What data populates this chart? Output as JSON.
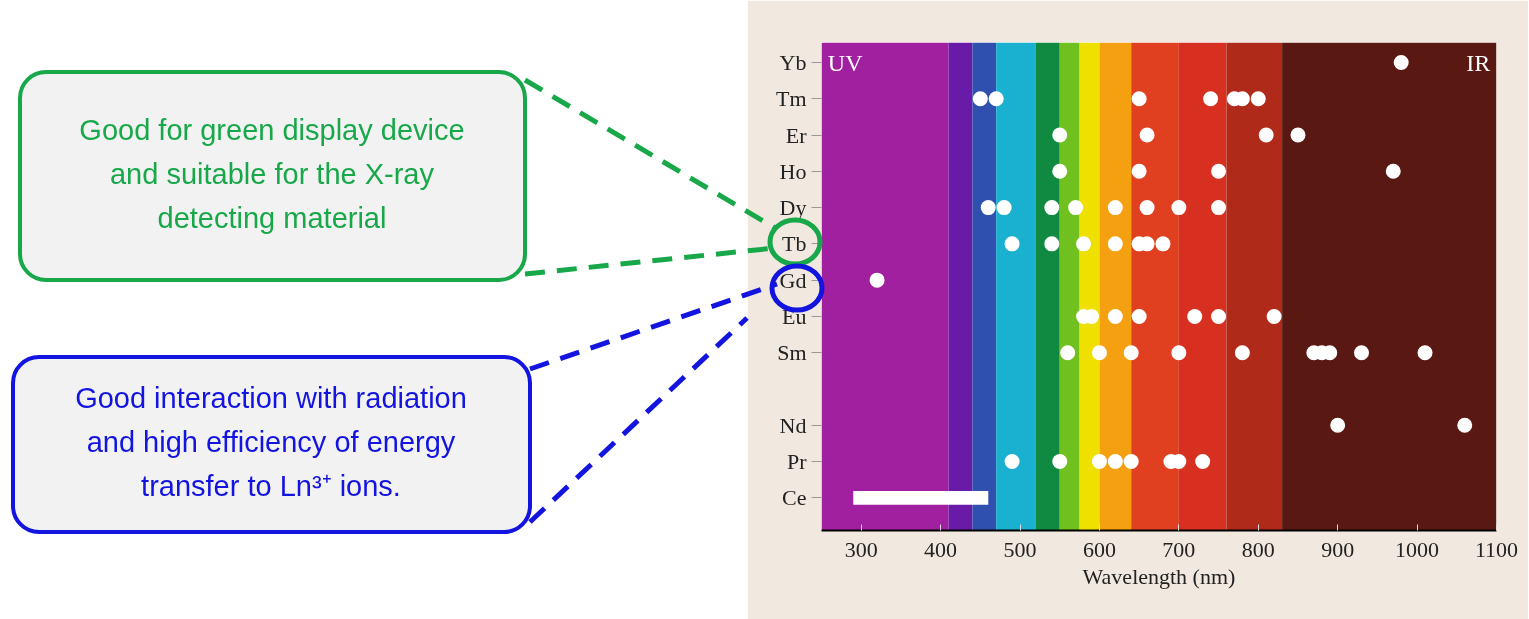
{
  "chart_data": {
    "type": "scatter",
    "orientation": "horizontal",
    "xlabel": "Wavelength (nm)",
    "categories": [
      "Yb",
      "Tm",
      "Er",
      "Ho",
      "Dy",
      "Tb",
      "Gd",
      "Eu",
      "Sm",
      null,
      "Nd",
      "Pr",
      "Ce"
    ],
    "xlim": [
      250,
      1100
    ],
    "xticks": [
      300,
      400,
      500,
      600,
      700,
      800,
      900,
      1000,
      1100
    ],
    "marker": "circle",
    "grid": false,
    "series": [
      {
        "color": "#ffffff",
        "values": [
          980,
          450,
          550,
          550,
          460,
          490,
          320,
          580,
          560,
          null,
          900,
          490,
          null
        ]
      },
      {
        "color": "#ffffff",
        "values": [
          null,
          470,
          660,
          650,
          480,
          540,
          null,
          590,
          600,
          null,
          1060,
          550,
          null
        ]
      },
      {
        "color": "#ffffff",
        "values": [
          null,
          650,
          810,
          750,
          540,
          580,
          null,
          620,
          640,
          null,
          null,
          600,
          null
        ]
      },
      {
        "color": "#ffffff",
        "values": [
          null,
          740,
          850,
          970,
          570,
          620,
          null,
          650,
          700,
          null,
          null,
          620,
          null
        ]
      },
      {
        "color": "#ffffff",
        "values": [
          null,
          770,
          null,
          null,
          620,
          650,
          null,
          720,
          780,
          null,
          null,
          640,
          null
        ]
      },
      {
        "color": "#ffffff",
        "values": [
          null,
          780,
          null,
          null,
          660,
          660,
          null,
          750,
          870,
          null,
          null,
          690,
          null
        ]
      },
      {
        "color": "#ffffff",
        "values": [
          null,
          800,
          null,
          null,
          700,
          680,
          null,
          820,
          880,
          null,
          null,
          700,
          null
        ]
      },
      {
        "color": "#ffffff",
        "values": [
          null,
          null,
          null,
          null,
          750,
          null,
          null,
          null,
          890,
          null,
          null,
          730,
          null
        ]
      },
      {
        "color": "#ffffff",
        "values": [
          null,
          null,
          null,
          null,
          null,
          null,
          null,
          null,
          930,
          null,
          null,
          null,
          null
        ]
      },
      {
        "color": "#ffffff",
        "values": [
          null,
          null,
          null,
          null,
          null,
          null,
          null,
          null,
          1010,
          null,
          null,
          null,
          null
        ]
      },
      {
        "type": "bar",
        "color": "#ffffff",
        "base": [
          null,
          null,
          null,
          null,
          null,
          null,
          null,
          null,
          null,
          null,
          null,
          null,
          290
        ],
        "values": [
          null,
          null,
          null,
          null,
          null,
          null,
          null,
          null,
          null,
          null,
          null,
          null,
          170
        ]
      }
    ],
    "bands": [
      {
        "axis": "x",
        "from": 250,
        "to": 410,
        "color": "#a020a0",
        "label": "UV"
      },
      {
        "axis": "x",
        "from": 410,
        "to": 440,
        "color": "#6a1aa8"
      },
      {
        "axis": "x",
        "from": 440,
        "to": 470,
        "color": "#3050b0"
      },
      {
        "axis": "x",
        "from": 470,
        "to": 520,
        "color": "#1ab0d0"
      },
      {
        "axis": "x",
        "from": 520,
        "to": 550,
        "color": "#108a40"
      },
      {
        "axis": "x",
        "from": 550,
        "to": 575,
        "color": "#70c020"
      },
      {
        "axis": "x",
        "from": 575,
        "to": 600,
        "color": "#f0e000"
      },
      {
        "axis": "x",
        "from": 600,
        "to": 640,
        "color": "#f5a010"
      },
      {
        "axis": "x",
        "from": 640,
        "to": 700,
        "color": "#e04020"
      },
      {
        "axis": "x",
        "from": 700,
        "to": 760,
        "color": "#d83020"
      },
      {
        "axis": "x",
        "from": 760,
        "to": 830,
        "color": "#b02a1a"
      },
      {
        "axis": "x",
        "from": 830,
        "to": 1100,
        "color": "#5a1812",
        "label": "IR"
      }
    ],
    "annotations": [
      "Good for green display device\nand suitable for the X-ray\ndetecting material",
      "Good interaction with radiation\nand high efficiency of energy\ntransfer to Ln³⁺ ions."
    ]
  }
}
